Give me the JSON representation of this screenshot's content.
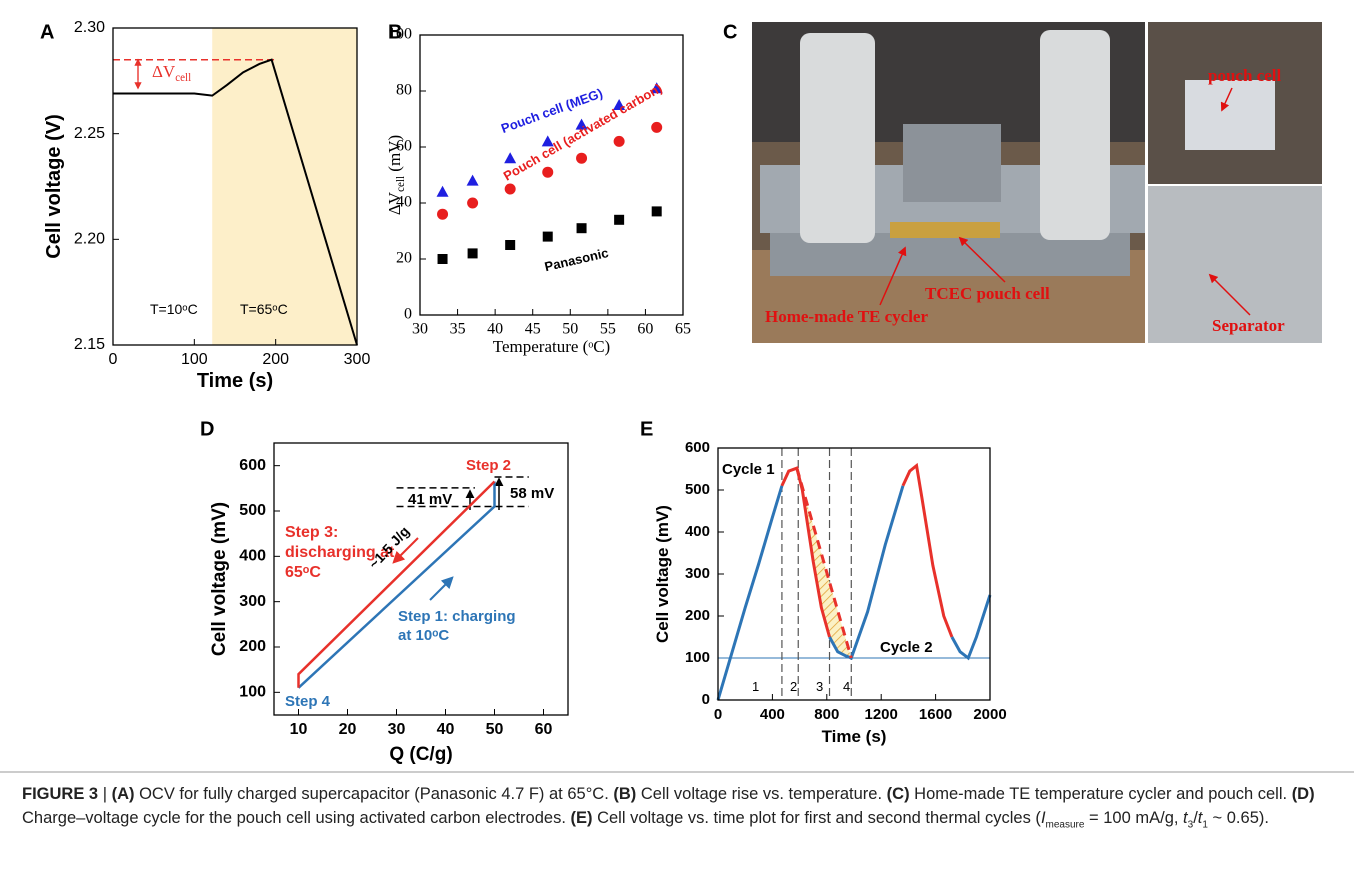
{
  "chart_data": [
    {
      "type": "line",
      "label": "A",
      "x_label": "Time (s)",
      "y_label": "Cell voltage (V)",
      "xlim": [
        0,
        300
      ],
      "xticks": [
        0,
        100,
        200,
        300
      ],
      "ylim": [
        2.15,
        2.3
      ],
      "yticks": [
        2.15,
        {
          "value": 2.2,
          "label": "2.20"
        },
        2.25,
        {
          "value": 2.3,
          "label": "2.30"
        }
      ],
      "shade": {
        "from": 122,
        "to": 300,
        "color": "#fdefc9"
      },
      "hlines": [
        {
          "value": 2.285,
          "from": 0,
          "to": 200,
          "color": "#e8312b",
          "dash": true
        }
      ],
      "series": [
        {
          "color": "#000000",
          "x": [
            0,
            100,
            122,
            140,
            160,
            180,
            195,
            300
          ],
          "values": [
            2.269,
            2.269,
            2.268,
            2.273,
            2.279,
            2.283,
            2.285,
            2.15
          ]
        }
      ],
      "annotations": [
        "T=10ᵒC",
        "T=65ᵒC",
        {
          "text": "ΔV",
          "sub": "cell"
        }
      ]
    },
    {
      "type": "scatter",
      "label": "B",
      "x_label": "Temperature (ᵒC)",
      "y_label": {
        "main": "ΔV",
        "sub": "cell",
        "unit": " (mV)"
      },
      "xlim": [
        30,
        65
      ],
      "xticks": [
        30,
        35,
        40,
        45,
        50,
        55,
        60,
        65
      ],
      "ylim": [
        0,
        100
      ],
      "yticks": [
        0,
        20,
        40,
        60,
        80,
        100
      ],
      "series": [
        {
          "name": "Pouch cell (MEG)",
          "color": "#1f1fe0",
          "marker": "triangle",
          "x": [
            33,
            37,
            42,
            47,
            51.5,
            56.5,
            61.5
          ],
          "values": [
            44,
            48,
            56,
            62,
            68,
            75,
            81
          ]
        },
        {
          "name": "Pouch cell (activated carbon)",
          "color": "#e81e1e",
          "marker": "circle",
          "x": [
            33,
            37,
            42,
            47,
            51.5,
            56.5,
            61.5
          ],
          "values": [
            36,
            40,
            45,
            51,
            56,
            62,
            67
          ]
        },
        {
          "name": "Panasonic",
          "color": "#000000",
          "marker": "square",
          "x": [
            33,
            37,
            42,
            47,
            51.5,
            56.5,
            61.5
          ],
          "values": [
            20,
            22,
            25,
            28,
            31,
            34,
            37
          ]
        }
      ]
    },
    {
      "type": "line",
      "label": "D",
      "x_label": "Q (C/g)",
      "y_label": "Cell voltage (mV)",
      "xlim": [
        5,
        65
      ],
      "xticks": [
        10,
        20,
        30,
        40,
        50,
        60
      ],
      "ylim": [
        50,
        650
      ],
      "yticks": [
        100,
        200,
        300,
        400,
        500,
        600
      ],
      "hlines": [
        {
          "value": 510,
          "from": 30,
          "to": 57,
          "color": "#000000",
          "dash": true
        },
        {
          "value": 551,
          "from": 30,
          "to": 46,
          "color": "#000000",
          "dash": true
        },
        {
          "value": 575,
          "from": 50,
          "to": 57,
          "color": "#000000",
          "dash": true
        }
      ],
      "series": [
        {
          "color": "#2d75b6",
          "x": [
            10,
            50,
            50
          ],
          "values": [
            110,
            510,
            565
          ]
        },
        {
          "color": "#e8312b",
          "x": [
            50,
            10,
            10
          ],
          "values": [
            565,
            140,
            110
          ]
        }
      ],
      "annotations": [
        "Step 2",
        [
          "Step 3:",
          "discharging at",
          "65ᵒC"
        ],
        [
          "Step 1: charging",
          "at 10ᵒC"
        ],
        "Step 4",
        "41 mV",
        "58 mV",
        "~1.5 J/g"
      ]
    },
    {
      "type": "line",
      "label": "E",
      "x_label": "Time (s)",
      "y_label": "Cell voltage (mV)",
      "xlim": [
        0,
        2000
      ],
      "xticks": [
        0,
        400,
        800,
        1200,
        1600,
        2000
      ],
      "ylim": [
        0,
        600
      ],
      "yticks": [
        0,
        100,
        200,
        300,
        400,
        500,
        600
      ],
      "hlines": [
        {
          "value": 100,
          "from": 0,
          "to": 2000,
          "color": "#2d75b6",
          "dash": false
        }
      ],
      "vlines": [
        {
          "value": 470,
          "color": "#555555"
        },
        {
          "value": 590,
          "color": "#555555"
        },
        {
          "value": 820,
          "color": "#555555"
        },
        {
          "value": 980,
          "color": "#555555"
        }
      ],
      "series": [
        {
          "color": "#2d75b6",
          "x": [
            0,
            100,
            200,
            300,
            400,
            470
          ],
          "values": [
            0,
            110,
            220,
            325,
            435,
            510
          ]
        },
        {
          "color": "#e8312b",
          "x": [
            470,
            520,
            580,
            620,
            700,
            760,
            820
          ],
          "values": [
            510,
            545,
            552,
            500,
            330,
            220,
            150
          ]
        },
        {
          "color": "#2d75b6",
          "x": [
            820,
            880,
            940,
            980,
            1100,
            1230,
            1360
          ],
          "values": [
            150,
            115,
            105,
            100,
            210,
            370,
            510
          ]
        },
        {
          "color": "#e8312b",
          "x": [
            1360,
            1410,
            1460,
            1500,
            1580,
            1660,
            1720
          ],
          "values": [
            510,
            545,
            558,
            480,
            320,
            200,
            150
          ]
        },
        {
          "color": "#2d75b6",
          "x": [
            1720,
            1780,
            1840,
            1900,
            2000
          ],
          "values": [
            150,
            115,
            100,
            150,
            250
          ]
        },
        {
          "color": "#e8312b",
          "dash": true,
          "x": [
            580,
            980
          ],
          "values": [
            552,
            100
          ]
        }
      ],
      "annotations": [
        "Cycle 1",
        "Cycle 2",
        "1",
        "2",
        "3",
        "4"
      ]
    }
  ],
  "photo": {
    "label": "C",
    "annotations": [
      "pouch cell",
      "TCEC pouch cell",
      "Home-made TE cycler",
      "Separator"
    ]
  },
  "caption": [
    {
      "b": "FIGURE 3"
    },
    " | ",
    {
      "b": "(A)"
    },
    " OCV for fully charged supercapacitor (Panasonic 4.7 F) at 65°C. ",
    {
      "b": "(B)"
    },
    " Cell voltage rise vs. temperature. ",
    {
      "b": "(C)"
    },
    " Home-made TE temperature cycler and pouch cell. ",
    {
      "b": "(D)"
    },
    " Charge–voltage cycle for the pouch cell using activated carbon electrodes. ",
    {
      "b": "(E)"
    },
    " Cell voltage vs. time plot for first and second thermal cycles (",
    {
      "i": "I"
    },
    {
      "sub": "measure"
    },
    " = 100 mA/g, ",
    {
      "i": "t"
    },
    {
      "sub": "3"
    },
    "/",
    {
      "i": "t"
    },
    {
      "sub": "1"
    },
    " ~ 0.65)."
  ]
}
